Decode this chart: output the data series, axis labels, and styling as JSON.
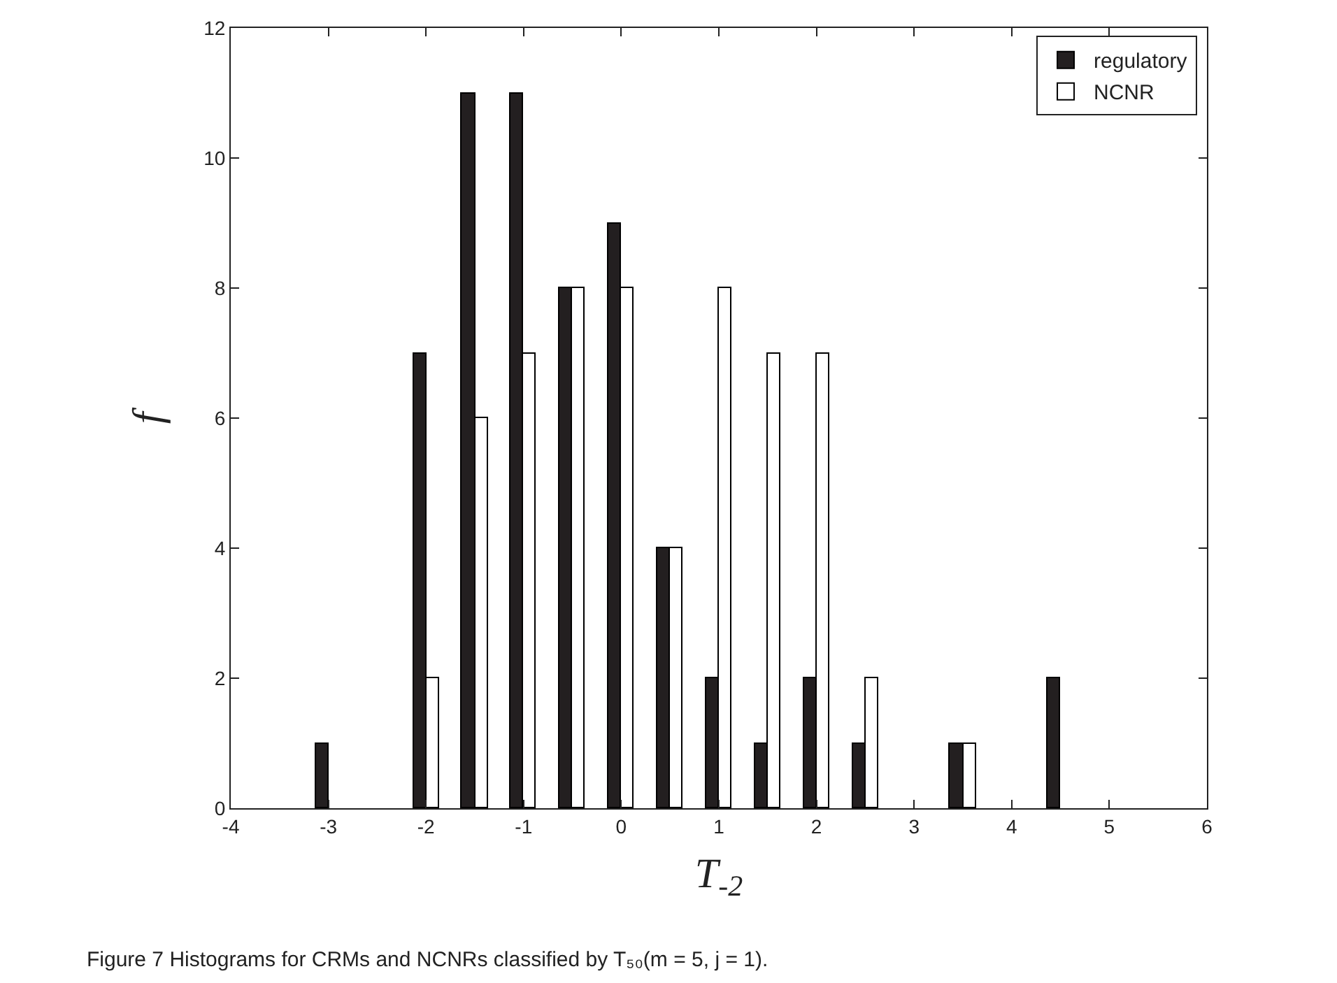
{
  "chart_data": {
    "type": "bar",
    "xlabel": "T$_{-2}$",
    "ylabel": "f",
    "x": [
      -3,
      -2,
      -1.5,
      -1,
      -0.5,
      0,
      0.5,
      1,
      1.5,
      2,
      2.5,
      3.5,
      4.5
    ],
    "series": [
      {
        "name": "regulatory",
        "color": "#231f20",
        "values": [
          1,
          7,
          11,
          11,
          8,
          9,
          4,
          2,
          1,
          2,
          1,
          1,
          2
        ]
      },
      {
        "name": "NCNR",
        "color": "#ffffff",
        "values": [
          null,
          2,
          6,
          7,
          8,
          8,
          4,
          8,
          7,
          7,
          2,
          1,
          null
        ]
      }
    ],
    "xlim": [
      -4,
      6
    ],
    "xticks": [
      -4,
      -3,
      -2,
      -1,
      0,
      1,
      2,
      3,
      4,
      5,
      6
    ],
    "ylim": [
      0,
      12
    ],
    "yticks": [
      0,
      2,
      4,
      6,
      8,
      10,
      12
    ],
    "grid": false,
    "legend": "top right",
    "annotations": [
      "Figure 7 Histograms for CRMs and NCNRs classified by T₅₀(m = 5, j = 1)."
    ]
  }
}
